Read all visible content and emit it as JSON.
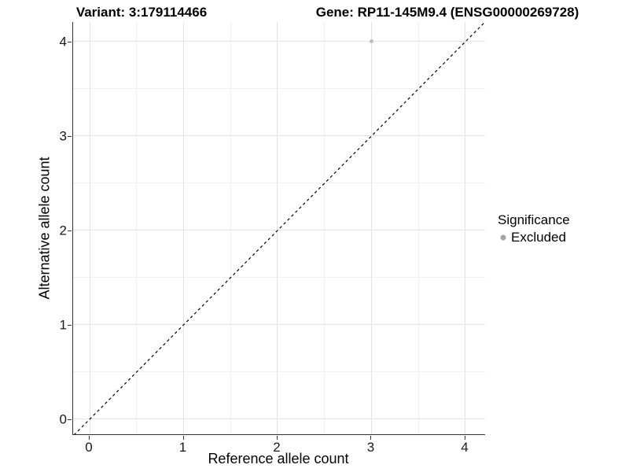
{
  "chart_data": {
    "type": "scatter",
    "title_left": "Variant: 3:179114466",
    "title_right": "Gene: RP11-145M9.4 (ENSG00000269728)",
    "xlabel": "Reference allele count",
    "ylabel": "Alternative allele count",
    "xlim": [
      -0.176,
      4.218
    ],
    "ylim": [
      -0.167,
      4.208
    ],
    "x_ticks": [
      0,
      1,
      2,
      3,
      4
    ],
    "y_ticks": [
      0,
      1,
      2,
      3,
      4
    ],
    "x_minor_ticks": [
      0.5,
      1.5,
      2.5,
      3.5
    ],
    "y_minor_ticks": [
      0.5,
      1.5,
      2.5,
      3.5
    ],
    "grid": true,
    "points": [
      {
        "x": 3,
        "y": 4,
        "series": "Excluded"
      }
    ],
    "reference_line": {
      "kind": "identity",
      "style": "dashed"
    },
    "legend": {
      "title": "Significance",
      "position": "right",
      "entries": [
        {
          "label": "Excluded",
          "color": "#a3a3a3"
        }
      ]
    },
    "colors": {
      "point": "#bdbdbd",
      "grid_major": "#e3e3e3",
      "grid_minor": "#f1f1f1",
      "axis_line": "#333333",
      "dashed_line": "#000000"
    }
  }
}
